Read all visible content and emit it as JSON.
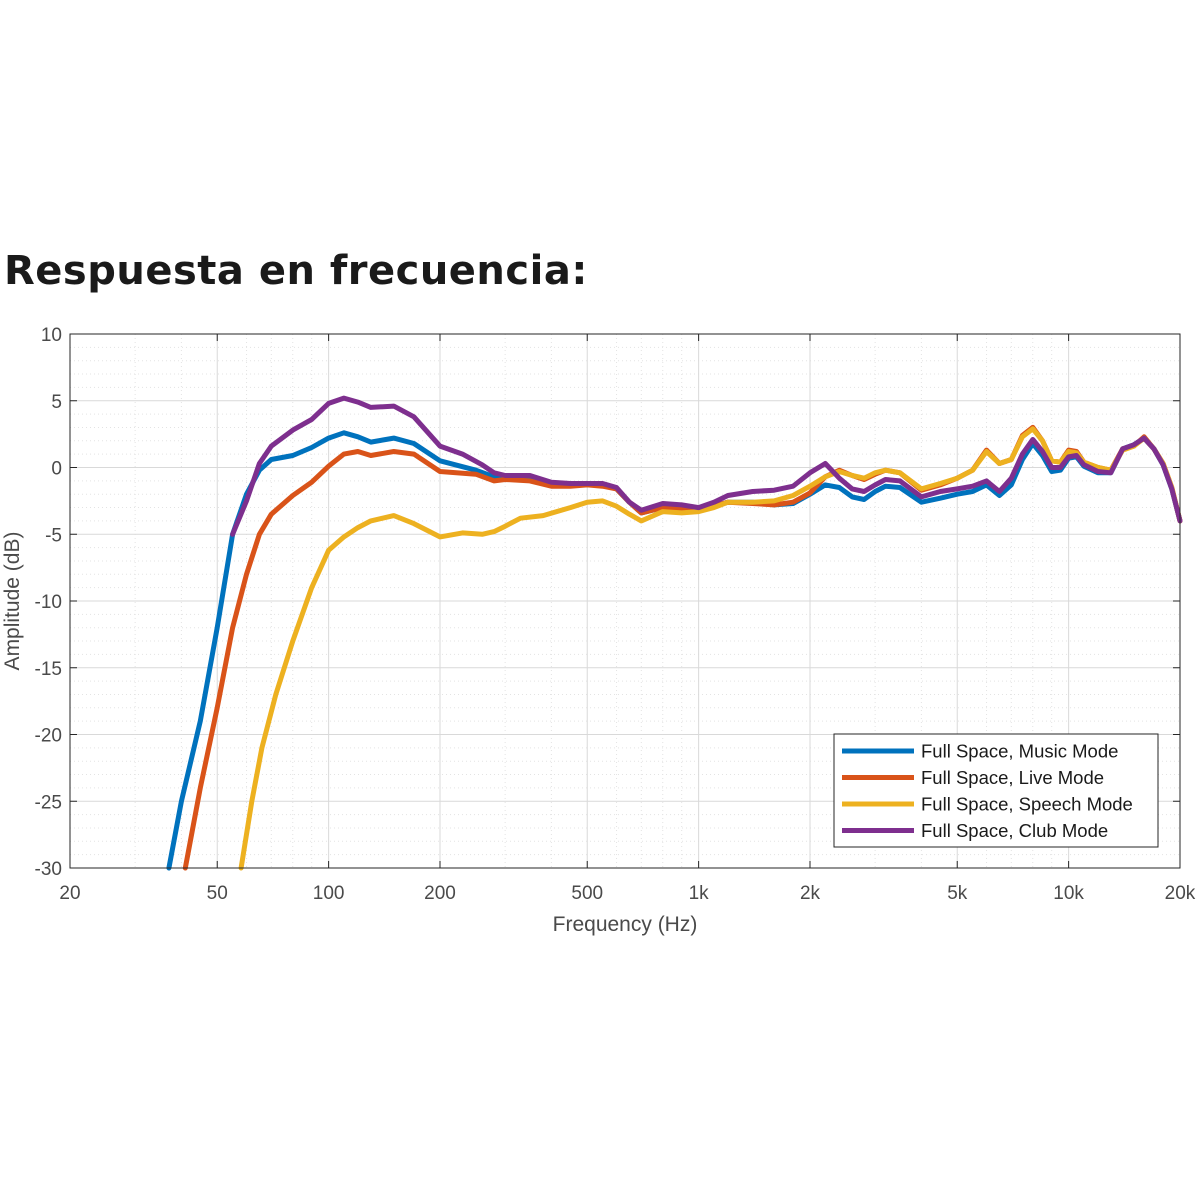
{
  "title": "Respuesta en frecuencia:",
  "chart_data": {
    "type": "line",
    "title": "Respuesta en frecuencia:",
    "xlabel": "Frequency (Hz)",
    "ylabel": "Amplitude (dB)",
    "xscale": "log",
    "xlim": [
      20,
      20000
    ],
    "ylim": [
      -30,
      10
    ],
    "xticks": [
      20,
      50,
      100,
      200,
      500,
      1000,
      2000,
      5000,
      10000,
      20000
    ],
    "xtick_labels": [
      "20",
      "50",
      "100",
      "200",
      "500",
      "1k",
      "2k",
      "5k",
      "10k",
      "20k"
    ],
    "yticks": [
      10,
      5,
      0,
      -5,
      -10,
      -15,
      -20,
      -25,
      -30
    ],
    "ytick_labels": [
      "10",
      "5",
      "0",
      "-5",
      "-10",
      "-15",
      "-20",
      "-25",
      "-30"
    ],
    "grid": true,
    "legend_position": "bottom-right",
    "series": [
      {
        "name": "Full Space, Music Mode",
        "color": "#0072BD",
        "points": [
          [
            37,
            -30
          ],
          [
            40,
            -25
          ],
          [
            45,
            -19
          ],
          [
            50,
            -12
          ],
          [
            55,
            -5
          ],
          [
            60,
            -2
          ],
          [
            65,
            -0.2
          ],
          [
            70,
            0.6
          ],
          [
            80,
            0.9
          ],
          [
            90,
            1.5
          ],
          [
            100,
            2.2
          ],
          [
            110,
            2.6
          ],
          [
            120,
            2.3
          ],
          [
            130,
            1.9
          ],
          [
            150,
            2.2
          ],
          [
            170,
            1.8
          ],
          [
            200,
            0.5
          ],
          [
            250,
            -0.2
          ],
          [
            280,
            -0.7
          ],
          [
            300,
            -0.9
          ],
          [
            350,
            -0.8
          ],
          [
            400,
            -1.2
          ],
          [
            450,
            -1.3
          ],
          [
            500,
            -1.3
          ],
          [
            550,
            -1.3
          ],
          [
            600,
            -1.6
          ],
          [
            650,
            -2.6
          ],
          [
            700,
            -3.4
          ],
          [
            800,
            -3.0
          ],
          [
            900,
            -3.1
          ],
          [
            1000,
            -3.2
          ],
          [
            1100,
            -2.9
          ],
          [
            1200,
            -2.6
          ],
          [
            1400,
            -2.6
          ],
          [
            1600,
            -2.8
          ],
          [
            1800,
            -2.7
          ],
          [
            2000,
            -2.0
          ],
          [
            2200,
            -1.3
          ],
          [
            2400,
            -1.5
          ],
          [
            2600,
            -2.2
          ],
          [
            2800,
            -2.4
          ],
          [
            3000,
            -1.8
          ],
          [
            3200,
            -1.4
          ],
          [
            3500,
            -1.5
          ],
          [
            4000,
            -2.6
          ],
          [
            4500,
            -2.3
          ],
          [
            5000,
            -2.0
          ],
          [
            5500,
            -1.8
          ],
          [
            6000,
            -1.3
          ],
          [
            6500,
            -2.1
          ],
          [
            7000,
            -1.3
          ],
          [
            7500,
            0.6
          ],
          [
            8000,
            1.8
          ],
          [
            8500,
            0.9
          ],
          [
            9000,
            -0.3
          ],
          [
            9500,
            -0.2
          ],
          [
            10000,
            0.7
          ],
          [
            10500,
            0.8
          ],
          [
            11000,
            0.1
          ],
          [
            12000,
            -0.4
          ],
          [
            13000,
            -0.4
          ],
          [
            14000,
            1.4
          ],
          [
            15000,
            1.7
          ],
          [
            16000,
            2.2
          ],
          [
            17000,
            1.4
          ],
          [
            18000,
            0.2
          ],
          [
            19000,
            -1.6
          ],
          [
            20000,
            -4.0
          ]
        ]
      },
      {
        "name": "Full Space, Live Mode",
        "color": "#D95319",
        "points": [
          [
            41,
            -30
          ],
          [
            45,
            -24
          ],
          [
            50,
            -18
          ],
          [
            55,
            -12
          ],
          [
            60,
            -8
          ],
          [
            65,
            -5
          ],
          [
            70,
            -3.5
          ],
          [
            80,
            -2.1
          ],
          [
            90,
            -1.1
          ],
          [
            100,
            0.1
          ],
          [
            110,
            1.0
          ],
          [
            120,
            1.2
          ],
          [
            130,
            0.9
          ],
          [
            150,
            1.2
          ],
          [
            170,
            1.0
          ],
          [
            200,
            -0.3
          ],
          [
            250,
            -0.5
          ],
          [
            280,
            -1.0
          ],
          [
            300,
            -0.9
          ],
          [
            350,
            -1.0
          ],
          [
            400,
            -1.4
          ],
          [
            450,
            -1.4
          ],
          [
            500,
            -1.3
          ],
          [
            550,
            -1.4
          ],
          [
            600,
            -1.6
          ],
          [
            650,
            -2.6
          ],
          [
            700,
            -3.4
          ],
          [
            800,
            -3.0
          ],
          [
            900,
            -3.1
          ],
          [
            1000,
            -3.2
          ],
          [
            1100,
            -2.9
          ],
          [
            1200,
            -2.6
          ],
          [
            1400,
            -2.7
          ],
          [
            1600,
            -2.8
          ],
          [
            1800,
            -2.6
          ],
          [
            2000,
            -1.9
          ],
          [
            2200,
            -0.7
          ],
          [
            2400,
            -0.2
          ],
          [
            2600,
            -0.6
          ],
          [
            2800,
            -0.9
          ],
          [
            3000,
            -0.5
          ],
          [
            3200,
            -0.2
          ],
          [
            3500,
            -0.4
          ],
          [
            4000,
            -1.7
          ],
          [
            4500,
            -1.3
          ],
          [
            5000,
            -0.8
          ],
          [
            5500,
            -0.2
          ],
          [
            6000,
            1.3
          ],
          [
            6500,
            0.3
          ],
          [
            7000,
            0.6
          ],
          [
            7500,
            2.4
          ],
          [
            8000,
            3.0
          ],
          [
            8500,
            2.0
          ],
          [
            9000,
            0.5
          ],
          [
            9500,
            0.4
          ],
          [
            10000,
            1.3
          ],
          [
            10500,
            1.2
          ],
          [
            11000,
            0.4
          ],
          [
            12000,
            0.0
          ],
          [
            13000,
            -0.2
          ],
          [
            14000,
            1.4
          ],
          [
            15000,
            1.6
          ],
          [
            16000,
            2.3
          ],
          [
            17000,
            1.4
          ],
          [
            18000,
            0.3
          ],
          [
            19000,
            -1.5
          ],
          [
            20000,
            -4.0
          ]
        ]
      },
      {
        "name": "Full Space, Speech Mode",
        "color": "#EDB120",
        "points": [
          [
            58,
            -30
          ],
          [
            62,
            -25
          ],
          [
            66,
            -21
          ],
          [
            72,
            -17
          ],
          [
            80,
            -13
          ],
          [
            90,
            -9
          ],
          [
            100,
            -6.2
          ],
          [
            110,
            -5.2
          ],
          [
            120,
            -4.5
          ],
          [
            130,
            -4.0
          ],
          [
            150,
            -3.6
          ],
          [
            170,
            -4.2
          ],
          [
            200,
            -5.2
          ],
          [
            230,
            -4.9
          ],
          [
            260,
            -5.0
          ],
          [
            280,
            -4.8
          ],
          [
            300,
            -4.4
          ],
          [
            330,
            -3.8
          ],
          [
            380,
            -3.6
          ],
          [
            450,
            -3.0
          ],
          [
            500,
            -2.6
          ],
          [
            550,
            -2.5
          ],
          [
            600,
            -2.9
          ],
          [
            650,
            -3.5
          ],
          [
            700,
            -4.0
          ],
          [
            800,
            -3.3
          ],
          [
            900,
            -3.4
          ],
          [
            1000,
            -3.3
          ],
          [
            1100,
            -3.0
          ],
          [
            1200,
            -2.6
          ],
          [
            1400,
            -2.6
          ],
          [
            1600,
            -2.5
          ],
          [
            1800,
            -2.1
          ],
          [
            2000,
            -1.4
          ],
          [
            2200,
            -0.7
          ],
          [
            2400,
            -0.3
          ],
          [
            2600,
            -0.6
          ],
          [
            2800,
            -0.8
          ],
          [
            3000,
            -0.4
          ],
          [
            3200,
            -0.2
          ],
          [
            3500,
            -0.4
          ],
          [
            4000,
            -1.6
          ],
          [
            4500,
            -1.2
          ],
          [
            5000,
            -0.8
          ],
          [
            5500,
            -0.2
          ],
          [
            6000,
            1.2
          ],
          [
            6500,
            0.3
          ],
          [
            7000,
            0.6
          ],
          [
            7500,
            2.3
          ],
          [
            8000,
            2.9
          ],
          [
            8500,
            2.0
          ],
          [
            9000,
            0.5
          ],
          [
            9500,
            0.4
          ],
          [
            10000,
            1.2
          ],
          [
            10500,
            1.1
          ],
          [
            11000,
            0.4
          ],
          [
            12000,
            0.0
          ],
          [
            13000,
            -0.2
          ],
          [
            14000,
            1.3
          ],
          [
            15000,
            1.6
          ],
          [
            16000,
            2.2
          ],
          [
            17000,
            1.4
          ],
          [
            18000,
            0.3
          ],
          [
            19000,
            -1.5
          ],
          [
            20000,
            -4.0
          ]
        ]
      },
      {
        "name": "Full Space, Club Mode",
        "color": "#7E2F8E",
        "points": [
          [
            55,
            -5
          ],
          [
            60,
            -2.5
          ],
          [
            65,
            0.3
          ],
          [
            70,
            1.6
          ],
          [
            80,
            2.8
          ],
          [
            90,
            3.6
          ],
          [
            100,
            4.8
          ],
          [
            110,
            5.2
          ],
          [
            120,
            4.9
          ],
          [
            130,
            4.5
          ],
          [
            150,
            4.6
          ],
          [
            170,
            3.8
          ],
          [
            200,
            1.6
          ],
          [
            230,
            1.0
          ],
          [
            260,
            0.2
          ],
          [
            280,
            -0.4
          ],
          [
            300,
            -0.6
          ],
          [
            350,
            -0.6
          ],
          [
            400,
            -1.1
          ],
          [
            450,
            -1.2
          ],
          [
            500,
            -1.2
          ],
          [
            550,
            -1.2
          ],
          [
            600,
            -1.5
          ],
          [
            650,
            -2.6
          ],
          [
            700,
            -3.2
          ],
          [
            800,
            -2.7
          ],
          [
            900,
            -2.8
          ],
          [
            1000,
            -3.0
          ],
          [
            1100,
            -2.6
          ],
          [
            1200,
            -2.1
          ],
          [
            1400,
            -1.8
          ],
          [
            1600,
            -1.7
          ],
          [
            1800,
            -1.4
          ],
          [
            2000,
            -0.4
          ],
          [
            2200,
            0.3
          ],
          [
            2400,
            -0.8
          ],
          [
            2600,
            -1.6
          ],
          [
            2800,
            -1.8
          ],
          [
            3000,
            -1.3
          ],
          [
            3200,
            -0.9
          ],
          [
            3500,
            -1.0
          ],
          [
            4000,
            -2.2
          ],
          [
            4500,
            -1.8
          ],
          [
            5000,
            -1.6
          ],
          [
            5500,
            -1.4
          ],
          [
            6000,
            -1.0
          ],
          [
            6500,
            -1.8
          ],
          [
            7000,
            -0.8
          ],
          [
            7500,
            1.0
          ],
          [
            8000,
            2.1
          ],
          [
            8500,
            1.2
          ],
          [
            9000,
            0.0
          ],
          [
            9500,
            0.0
          ],
          [
            10000,
            0.8
          ],
          [
            10500,
            0.9
          ],
          [
            11000,
            0.2
          ],
          [
            12000,
            -0.3
          ],
          [
            13000,
            -0.4
          ],
          [
            14000,
            1.4
          ],
          [
            15000,
            1.7
          ],
          [
            16000,
            2.2
          ],
          [
            17000,
            1.4
          ],
          [
            18000,
            0.2
          ],
          [
            19000,
            -1.6
          ],
          [
            20000,
            -4.0
          ]
        ]
      }
    ]
  }
}
